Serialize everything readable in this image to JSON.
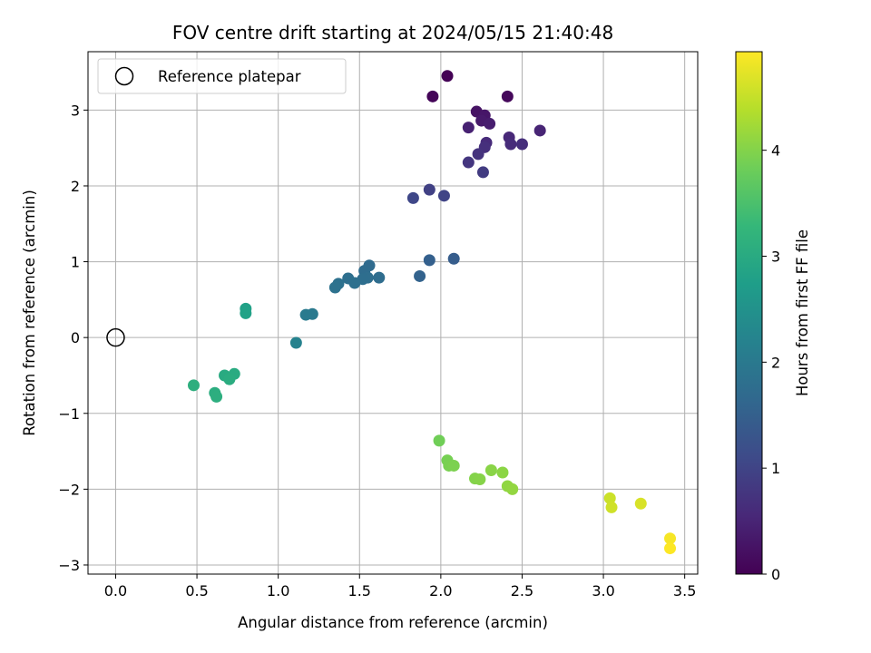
{
  "chart_data": {
    "type": "scatter",
    "title": "FOV centre drift starting at 2024/05/15 21:40:48",
    "xlabel": "Angular distance from reference (arcmin)",
    "ylabel": "Rotation from reference (arcmin)",
    "xlim": [
      -0.17,
      3.58
    ],
    "ylim": [
      -3.12,
      3.77
    ],
    "xticks": [
      0.0,
      0.5,
      1.0,
      1.5,
      2.0,
      2.5,
      3.0,
      3.5
    ],
    "xtick_labels": [
      "0.0",
      "0.5",
      "1.0",
      "1.5",
      "2.0",
      "2.5",
      "3.0",
      "3.5"
    ],
    "yticks": [
      -3,
      -2,
      -1,
      0,
      1,
      2,
      3
    ],
    "ytick_labels": [
      "−3",
      "−2",
      "−1",
      "0",
      "1",
      "2",
      "3"
    ],
    "grid": true,
    "legend": {
      "entries": [
        "Reference platepar"
      ],
      "placement": "upper-left",
      "marker": "open-circle"
    },
    "reference_point": {
      "x": 0.0,
      "y": 0.0
    },
    "colorbar": {
      "label": "Hours from first FF file",
      "colormap": "viridis",
      "range": [
        0,
        4.93
      ],
      "ticks": [
        0,
        1,
        2,
        3,
        4
      ],
      "tick_labels": [
        "0",
        "1",
        "2",
        "3",
        "4"
      ]
    },
    "points": [
      {
        "x": 2.04,
        "y": 3.45,
        "c": 0.02
      },
      {
        "x": 1.95,
        "y": 3.18,
        "c": 0.06
      },
      {
        "x": 2.41,
        "y": 3.18,
        "c": 0.1
      },
      {
        "x": 2.22,
        "y": 2.98,
        "c": 0.25
      },
      {
        "x": 2.27,
        "y": 2.93,
        "c": 0.3
      },
      {
        "x": 2.25,
        "y": 2.86,
        "c": 0.35
      },
      {
        "x": 2.3,
        "y": 2.82,
        "c": 0.4
      },
      {
        "x": 2.17,
        "y": 2.77,
        "c": 0.45
      },
      {
        "x": 2.61,
        "y": 2.73,
        "c": 0.5
      },
      {
        "x": 2.42,
        "y": 2.64,
        "c": 0.55
      },
      {
        "x": 2.28,
        "y": 2.57,
        "c": 0.6
      },
      {
        "x": 2.43,
        "y": 2.55,
        "c": 0.62
      },
      {
        "x": 2.5,
        "y": 2.55,
        "c": 0.65
      },
      {
        "x": 2.27,
        "y": 2.51,
        "c": 0.68
      },
      {
        "x": 2.23,
        "y": 2.42,
        "c": 0.72
      },
      {
        "x": 2.17,
        "y": 2.31,
        "c": 0.78
      },
      {
        "x": 2.26,
        "y": 2.18,
        "c": 0.85
      },
      {
        "x": 1.93,
        "y": 1.95,
        "c": 0.95
      },
      {
        "x": 2.02,
        "y": 1.87,
        "c": 1.0
      },
      {
        "x": 1.83,
        "y": 1.84,
        "c": 1.05
      },
      {
        "x": 2.08,
        "y": 1.04,
        "c": 1.45
      },
      {
        "x": 1.93,
        "y": 1.02,
        "c": 1.5
      },
      {
        "x": 1.87,
        "y": 0.81,
        "c": 1.55
      },
      {
        "x": 1.56,
        "y": 0.95,
        "c": 1.7
      },
      {
        "x": 1.53,
        "y": 0.88,
        "c": 1.72
      },
      {
        "x": 1.62,
        "y": 0.79,
        "c": 1.74
      },
      {
        "x": 1.55,
        "y": 0.79,
        "c": 1.76
      },
      {
        "x": 1.52,
        "y": 0.77,
        "c": 1.78
      },
      {
        "x": 1.43,
        "y": 0.78,
        "c": 1.8
      },
      {
        "x": 1.47,
        "y": 0.72,
        "c": 1.82
      },
      {
        "x": 1.37,
        "y": 0.71,
        "c": 1.84
      },
      {
        "x": 1.35,
        "y": 0.66,
        "c": 1.86
      },
      {
        "x": 1.21,
        "y": 0.31,
        "c": 2.0
      },
      {
        "x": 1.17,
        "y": 0.3,
        "c": 2.02
      },
      {
        "x": 1.11,
        "y": -0.07,
        "c": 2.2
      },
      {
        "x": 0.8,
        "y": 0.38,
        "c": 2.8
      },
      {
        "x": 0.8,
        "y": 0.32,
        "c": 2.82
      },
      {
        "x": 0.48,
        "y": -0.63,
        "c": 3.1
      },
      {
        "x": 0.67,
        "y": -0.5,
        "c": 3.0
      },
      {
        "x": 0.73,
        "y": -0.48,
        "c": 3.02
      },
      {
        "x": 0.7,
        "y": -0.55,
        "c": 3.04
      },
      {
        "x": 0.61,
        "y": -0.73,
        "c": 3.06
      },
      {
        "x": 0.62,
        "y": -0.78,
        "c": 3.08
      },
      {
        "x": 1.99,
        "y": -1.36,
        "c": 3.85
      },
      {
        "x": 2.04,
        "y": -1.62,
        "c": 3.9
      },
      {
        "x": 2.05,
        "y": -1.69,
        "c": 3.92
      },
      {
        "x": 2.08,
        "y": -1.69,
        "c": 3.94
      },
      {
        "x": 2.21,
        "y": -1.86,
        "c": 4.0
      },
      {
        "x": 2.24,
        "y": -1.87,
        "c": 4.02
      },
      {
        "x": 2.31,
        "y": -1.75,
        "c": 4.04
      },
      {
        "x": 2.38,
        "y": -1.78,
        "c": 4.06
      },
      {
        "x": 2.41,
        "y": -1.96,
        "c": 4.1
      },
      {
        "x": 2.44,
        "y": -2.0,
        "c": 4.12
      },
      {
        "x": 3.04,
        "y": -2.12,
        "c": 4.55
      },
      {
        "x": 3.05,
        "y": -2.24,
        "c": 4.58
      },
      {
        "x": 3.23,
        "y": -2.19,
        "c": 4.65
      },
      {
        "x": 3.41,
        "y": -2.65,
        "c": 4.88
      },
      {
        "x": 3.41,
        "y": -2.78,
        "c": 4.92
      }
    ]
  }
}
